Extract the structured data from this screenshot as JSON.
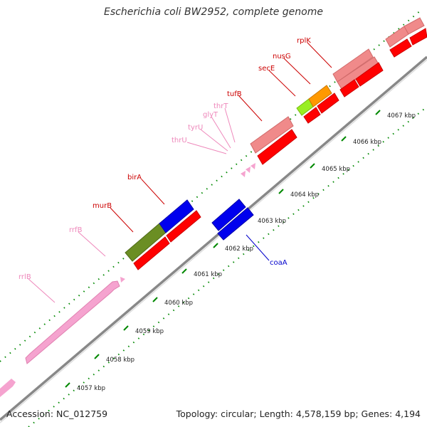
{
  "title": "Escherichia coli BW2952, complete genome",
  "footer": {
    "accession": "Accession: NC_012759",
    "stats": "Topology: circular; Length: 4,578,159 bp; Genes: 4,194"
  },
  "scale": {
    "unit": "kbp",
    "ticks": [
      "4057 kbp",
      "4058 kbp",
      "4059 kbp",
      "4060 kbp",
      "4061 kbp",
      "4062 kbp",
      "4063 kbp",
      "4064 kbp",
      "4065 kbp",
      "4066 kbp",
      "4067 kbp"
    ]
  },
  "gene_labels": [
    {
      "name": "rrlB",
      "color": "#ee88bb"
    },
    {
      "name": "rrfB",
      "color": "#ee88bb"
    },
    {
      "name": "murB",
      "color": "#cc0000"
    },
    {
      "name": "birA",
      "color": "#cc0000"
    },
    {
      "name": "thrU",
      "color": "#ee88bb"
    },
    {
      "name": "tyrU",
      "color": "#ee88bb"
    },
    {
      "name": "glyT",
      "color": "#ee88bb"
    },
    {
      "name": "thrT",
      "color": "#ee88bb"
    },
    {
      "name": "tufB",
      "color": "#cc0000"
    },
    {
      "name": "secE",
      "color": "#cc0000"
    },
    {
      "name": "nusG",
      "color": "#cc0000"
    },
    {
      "name": "rplK",
      "color": "#cc0000"
    },
    {
      "name": "coaA",
      "color": "#0000cc"
    }
  ],
  "colors": {
    "rrna": "#f5a3cf",
    "trna": "#f5a3cf",
    "cds_red": "#ff0000",
    "cds_pink": "#f08a8a",
    "cds_blue": "#0000ee",
    "cds_olive": "#6b8e23",
    "cds_lime": "#99ee22",
    "cds_orange": "#ff9900",
    "backbone": "#999999",
    "tick_green": "#008800"
  }
}
